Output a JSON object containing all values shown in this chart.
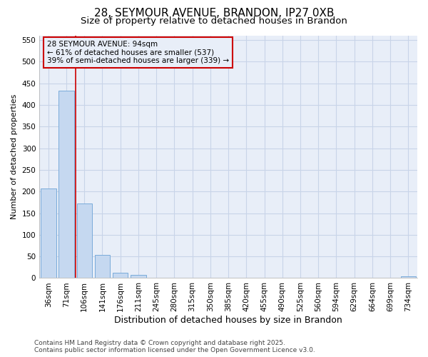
{
  "title": "28, SEYMOUR AVENUE, BRANDON, IP27 0XB",
  "subtitle": "Size of property relative to detached houses in Brandon",
  "xlabel": "Distribution of detached houses by size in Brandon",
  "ylabel": "Number of detached properties",
  "categories": [
    "36sqm",
    "71sqm",
    "106sqm",
    "141sqm",
    "176sqm",
    "211sqm",
    "245sqm",
    "280sqm",
    "315sqm",
    "350sqm",
    "385sqm",
    "420sqm",
    "455sqm",
    "490sqm",
    "525sqm",
    "560sqm",
    "594sqm",
    "629sqm",
    "664sqm",
    "699sqm",
    "734sqm"
  ],
  "values": [
    207,
    433,
    173,
    53,
    13,
    8,
    0,
    0,
    0,
    0,
    0,
    0,
    0,
    0,
    0,
    0,
    0,
    0,
    0,
    0,
    4
  ],
  "bar_color": "#c5d8f0",
  "bar_edge_color": "#7aabda",
  "grid_color": "#c8d4e8",
  "background_color": "#ffffff",
  "plot_bg_color": "#e8eef8",
  "annotation_line1": "28 SEYMOUR AVENUE: 94sqm",
  "annotation_line2": "← 61% of detached houses are smaller (537)",
  "annotation_line3": "39% of semi-detached houses are larger (339) →",
  "annotation_box_color": "#cc0000",
  "property_line_x": 1.5,
  "ylim_max": 560,
  "yticks": [
    0,
    50,
    100,
    150,
    200,
    250,
    300,
    350,
    400,
    450,
    500,
    550
  ],
  "footer_line1": "Contains HM Land Registry data © Crown copyright and database right 2025.",
  "footer_line2": "Contains public sector information licensed under the Open Government Licence v3.0.",
  "title_fontsize": 11,
  "subtitle_fontsize": 9.5,
  "xlabel_fontsize": 9,
  "ylabel_fontsize": 8,
  "tick_fontsize": 7.5,
  "annotation_fontsize": 7.5,
  "footer_fontsize": 6.5
}
